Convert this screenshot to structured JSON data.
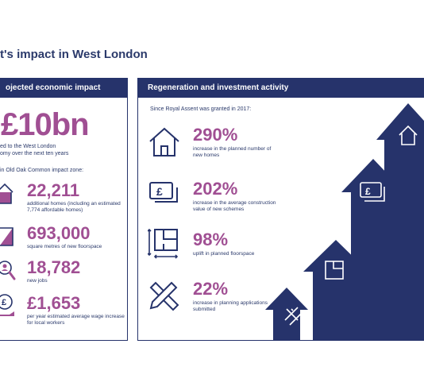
{
  "title": "t's impact in West London",
  "left": {
    "header": "ojected economic impact",
    "headline_value": "£10bn",
    "headline_caption": "ed to the West London\nomy over the next ten years",
    "zone_label": "in Old Oak Common impact zone:",
    "stats": [
      {
        "value": "22,211",
        "caption": "additional homes (including an estimated 7,774 affordable homes)",
        "icon": "house-icon"
      },
      {
        "value": "693,000",
        "caption": "square metres of new floorspace",
        "icon": "floorspace-icon"
      },
      {
        "value": "18,782",
        "caption": "new jobs",
        "icon": "magnifier-person-icon"
      },
      {
        "value": "£1,653",
        "caption": "per year estimated average wage increase for local workers",
        "icon": "pound-hand-icon"
      }
    ]
  },
  "right": {
    "header": "Regeneration and investment activity",
    "lead": "Since Royal Assent was granted in 2017:",
    "stats": [
      {
        "value": "290%",
        "caption": "increase in the planned number of new homes",
        "icon": "house-icon"
      },
      {
        "value": "202%",
        "caption": "increase in the average construction value of new schemes",
        "icon": "pound-notes-icon"
      },
      {
        "value": "98%",
        "caption": "uplift in planned floorspace",
        "icon": "floorplan-icon"
      },
      {
        "value": "22%",
        "caption": "increase in planning applications submitted",
        "icon": "ruler-pencil-icon"
      }
    ]
  },
  "colors": {
    "navy": "#26336b",
    "purple": "#a04f93"
  }
}
